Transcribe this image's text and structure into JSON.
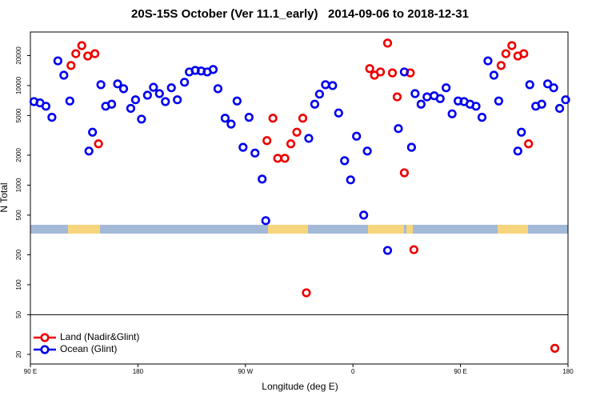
{
  "chart_data": {
    "type": "scatter",
    "title": "20S-15S October (Ver 11.1_early)   2014-09-06 to 2018-12-31",
    "x_label": "Longitude (deg E)",
    "y_label": "N Total",
    "xlim": [
      90,
      540
    ],
    "ylim": [
      16,
      34500
    ],
    "log_y": true,
    "xticks": [
      {
        "value": 90,
        "label": "90 E"
      },
      {
        "value": 180,
        "label": "180"
      },
      {
        "value": 270,
        "label": "90 W"
      },
      {
        "value": 360,
        "label": "0"
      },
      {
        "value": 450,
        "label": "90 E"
      },
      {
        "value": 540,
        "label": "180"
      }
    ],
    "yticks": [
      20,
      50,
      100,
      200,
      500,
      1000,
      2000,
      5000,
      10000,
      20000
    ],
    "hline": 50,
    "legend": "lower left",
    "series": [
      {
        "name": "Land (Nadir&Glint)",
        "color": "#ee0000",
        "x": [
          124,
          128,
          133,
          138,
          144,
          147,
          288,
          293,
          297,
          303,
          308,
          313,
          318,
          321,
          374,
          378,
          383,
          389,
          393,
          397,
          403,
          408,
          411,
          484,
          488,
          493,
          498,
          503,
          507,
          529
        ],
        "values": [
          15900,
          20900,
          25200,
          19800,
          20900,
          2600,
          2800,
          4700,
          1860,
          1860,
          2600,
          3400,
          4700,
          83,
          14800,
          12700,
          13700,
          26700,
          13400,
          7700,
          1330,
          13400,
          225,
          15900,
          20900,
          25200,
          19800,
          20900,
          2600,
          23
        ]
      },
      {
        "name": "Ocean (Glint)",
        "color": "#0000ee",
        "x": [
          93,
          98,
          103,
          108,
          113,
          118,
          123,
          139,
          142,
          149,
          153,
          158,
          163,
          168,
          174,
          178,
          183,
          188,
          193,
          198,
          203,
          208,
          213,
          219,
          223,
          228,
          233,
          238,
          243,
          247,
          253,
          258,
          263,
          268,
          273,
          278,
          284,
          287,
          323,
          328,
          332,
          337,
          343,
          348,
          353,
          358,
          363,
          369,
          372,
          389,
          398,
          403,
          409,
          412,
          417,
          422,
          428,
          433,
          438,
          443,
          448,
          453,
          458,
          463,
          468,
          473,
          478,
          482,
          498,
          501,
          508,
          513,
          518,
          523,
          528,
          533,
          538
        ],
        "values": [
          6900,
          6700,
          6200,
          4800,
          17700,
          12700,
          7000,
          2200,
          3400,
          10200,
          6200,
          6500,
          10400,
          9300,
          5900,
          7200,
          4600,
          8000,
          9600,
          8300,
          6900,
          9500,
          7200,
          10800,
          13700,
          14200,
          14000,
          13700,
          14500,
          9300,
          4700,
          4100,
          7000,
          2400,
          4800,
          2100,
          1150,
          440,
          2950,
          6500,
          8200,
          10200,
          10000,
          5300,
          1760,
          1130,
          3100,
          500,
          2200,
          221,
          3700,
          13700,
          2400,
          8300,
          6500,
          7700,
          7900,
          7400,
          9500,
          5200,
          7000,
          6900,
          6500,
          6200,
          4800,
          17700,
          12700,
          7000,
          2200,
          3400,
          10200,
          6200,
          6500,
          10400,
          9500,
          5900,
          7200
        ]
      }
    ]
  }
}
